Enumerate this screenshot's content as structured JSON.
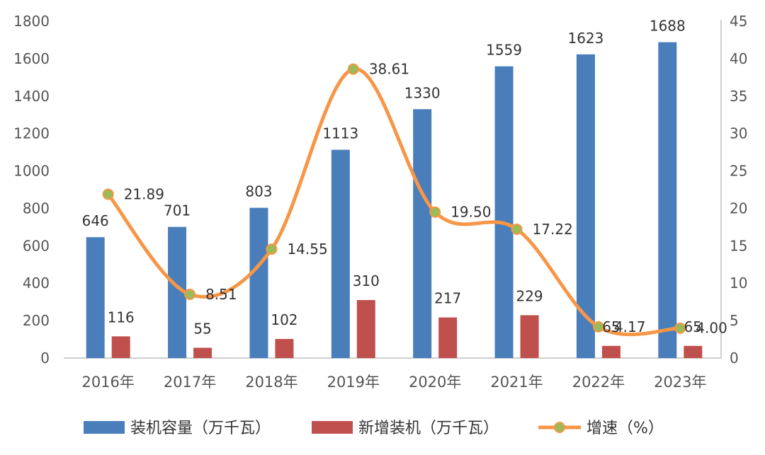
{
  "chart_data": {
    "type": "bar",
    "categories": [
      "2016年",
      "2017年",
      "2018年",
      "2019年",
      "2020年",
      "2021年",
      "2022年",
      "2023年"
    ],
    "series": [
      {
        "name": "装机容量（万千瓦）",
        "kind": "bar",
        "axis": "left",
        "color": "#4A7EBB",
        "values": [
          646,
          701,
          803,
          1113,
          1330,
          1559,
          1623,
          1688
        ],
        "labels": [
          "646",
          "701",
          "803",
          "1113",
          "1330",
          "1559",
          "1623",
          "1688"
        ]
      },
      {
        "name": "新增装机（万千瓦）",
        "kind": "bar",
        "axis": "left",
        "color": "#C0504D",
        "values": [
          116,
          55,
          102,
          310,
          217,
          229,
          65,
          65
        ],
        "labels": [
          "116",
          "55",
          "102",
          "310",
          "217",
          "229",
          "65",
          "65"
        ]
      },
      {
        "name": "增速（%）",
        "kind": "line",
        "axis": "right",
        "color": "#F79646",
        "marker_color": "#9BBB59",
        "values": [
          21.89,
          8.51,
          14.55,
          38.61,
          19.5,
          17.22,
          4.17,
          4.0
        ],
        "labels": [
          "21.89",
          "8.51",
          "14.55",
          "38.61",
          "19.50",
          "17.22",
          "4.17",
          "4.00"
        ]
      }
    ],
    "y_left": {
      "range": [
        0,
        1800
      ],
      "ticks": [
        "0",
        "200",
        "400",
        "600",
        "800",
        "1000",
        "1200",
        "1400",
        "1600",
        "1800"
      ]
    },
    "y_right": {
      "range": [
        0,
        45
      ],
      "ticks": [
        "0",
        "5",
        "10",
        "15",
        "20",
        "25",
        "30",
        "35",
        "40",
        "45"
      ]
    },
    "grid": false,
    "legend": "bottom"
  }
}
